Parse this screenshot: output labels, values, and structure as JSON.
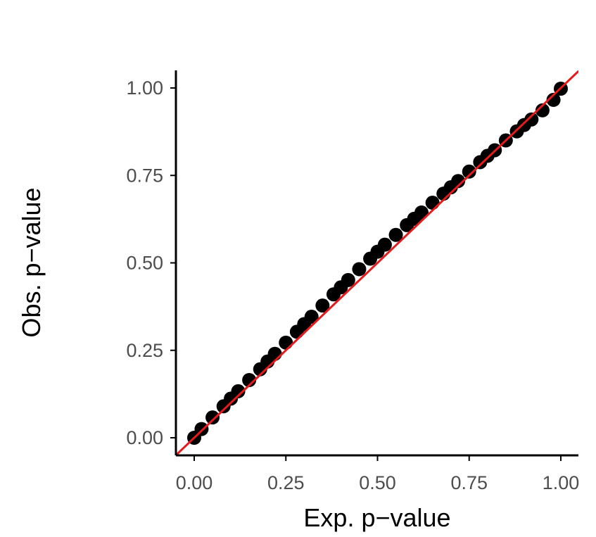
{
  "chart_data": {
    "type": "scatter",
    "title": "",
    "xlabel": "Exp. p−value",
    "ylabel": "Obs. p−value",
    "xlim": [
      0,
      1
    ],
    "ylim": [
      0,
      1
    ],
    "x_ticks": [
      {
        "value": 0.0,
        "label": "0.00"
      },
      {
        "value": 0.25,
        "label": "0.25"
      },
      {
        "value": 0.5,
        "label": "0.50"
      },
      {
        "value": 0.75,
        "label": "0.75"
      },
      {
        "value": 1.0,
        "label": "1.00"
      }
    ],
    "y_ticks": [
      {
        "value": 0.0,
        "label": "0.00"
      },
      {
        "value": 0.25,
        "label": "0.25"
      },
      {
        "value": 0.5,
        "label": "0.50"
      },
      {
        "value": 0.75,
        "label": "0.75"
      },
      {
        "value": 1.0,
        "label": "1.00"
      }
    ],
    "grid": false,
    "legend": "none",
    "series": [
      {
        "type": "scatter",
        "color": "#000000",
        "x": [
          0.0,
          0.02,
          0.05,
          0.08,
          0.1,
          0.12,
          0.15,
          0.18,
          0.2,
          0.22,
          0.25,
          0.28,
          0.3,
          0.32,
          0.35,
          0.38,
          0.4,
          0.42,
          0.45,
          0.48,
          0.5,
          0.52,
          0.55,
          0.58,
          0.6,
          0.62,
          0.65,
          0.68,
          0.7,
          0.72,
          0.75,
          0.78,
          0.8,
          0.82,
          0.85,
          0.88,
          0.9,
          0.92,
          0.95,
          0.98,
          1.0
        ],
        "y": [
          0.0,
          0.025,
          0.058,
          0.09,
          0.112,
          0.133,
          0.165,
          0.196,
          0.218,
          0.24,
          0.272,
          0.303,
          0.325,
          0.346,
          0.378,
          0.41,
          0.43,
          0.451,
          0.482,
          0.512,
          0.532,
          0.552,
          0.58,
          0.608,
          0.626,
          0.644,
          0.672,
          0.698,
          0.716,
          0.734,
          0.761,
          0.788,
          0.806,
          0.822,
          0.85,
          0.876,
          0.894,
          0.91,
          0.936,
          0.966,
          0.998
        ]
      },
      {
        "type": "line",
        "color": "#e41a1c",
        "x": [
          -0.05,
          1.05
        ],
        "y": [
          -0.05,
          1.05
        ]
      }
    ]
  }
}
